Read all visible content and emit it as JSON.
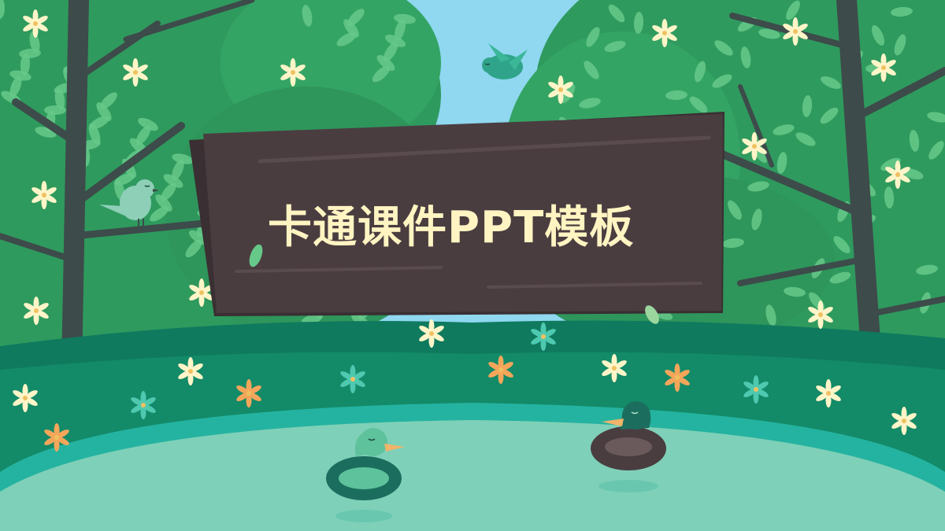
{
  "slide": {
    "title": "卡通课件PPT模板"
  },
  "colors": {
    "sky": "#8fd8f0",
    "foliage_dark": "#2f9a5e",
    "foliage_light": "#4db874",
    "leaf": "#66c98a",
    "trunk": "#3d4b4a",
    "sign_board": "#4a3d40",
    "title_text": "#fff4c2",
    "grass": "#0f7a5e",
    "pond": "#7fd0b8",
    "pond_edge": "#24b3a0",
    "flower_cream": "#fff5c8",
    "flower_orange": "#f5a65a",
    "flower_teal": "#4ec9b0"
  },
  "icons": [
    "bird-icon",
    "duck-icon",
    "flower-icon",
    "leaf-icon",
    "tree-icon",
    "sign-board-icon"
  ]
}
